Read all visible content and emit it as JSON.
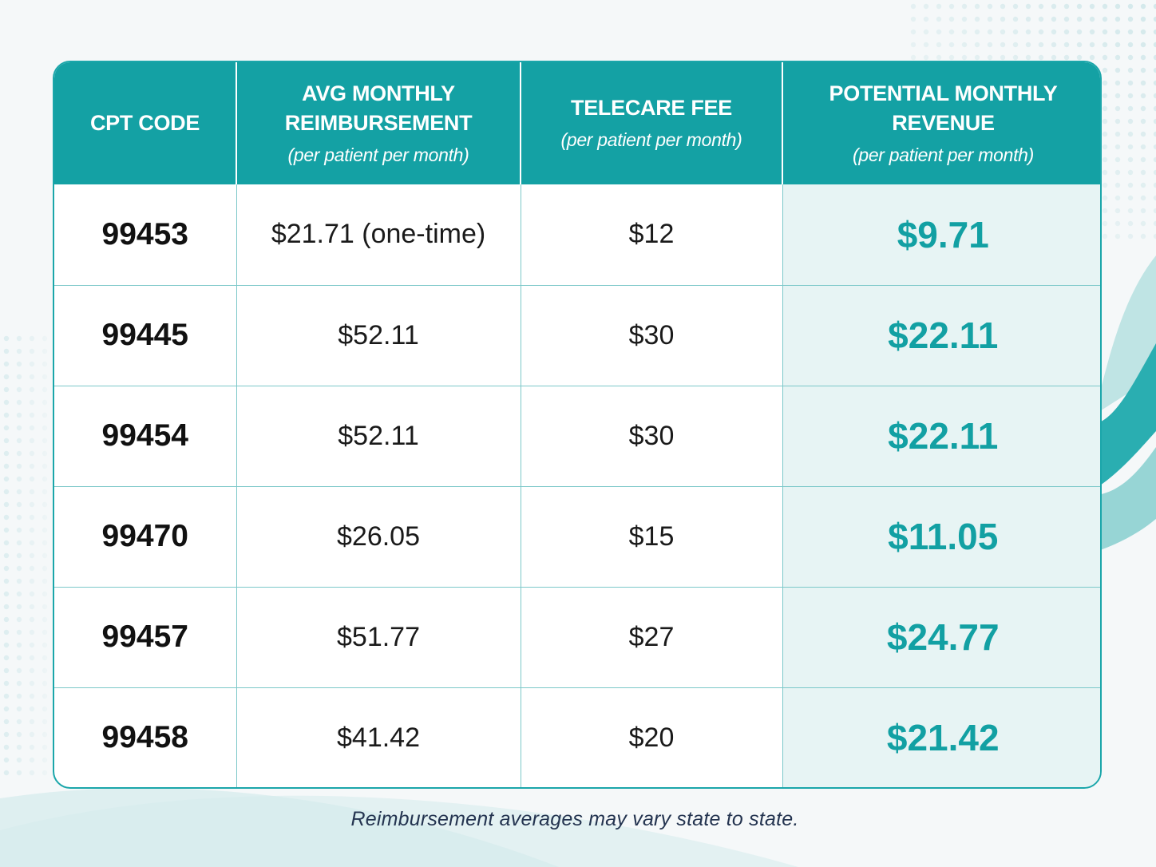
{
  "colors": {
    "header_bg": "#14a1a4",
    "accent_teal": "#12a0a3",
    "revenue_cell_bg": "#e7f4f4",
    "grid_line": "#7cc8c9"
  },
  "chart_data": {
    "type": "table",
    "columns": [
      {
        "title": "CPT CODE",
        "subtitle": ""
      },
      {
        "title": "AVG MONTHLY REIMBURSEMENT",
        "subtitle": "(per patient per month)"
      },
      {
        "title": "TELECARE FEE",
        "subtitle": "(per patient per month)"
      },
      {
        "title": "POTENTIAL MONTHLY REVENUE",
        "subtitle": "(per patient per month)"
      }
    ],
    "rows": [
      {
        "cpt_code": "99453",
        "reimbursement": "$21.71 (one-time)",
        "telecare_fee": "$12",
        "revenue": "$9.71"
      },
      {
        "cpt_code": "99445",
        "reimbursement": "$52.11",
        "telecare_fee": "$30",
        "revenue": "$22.11"
      },
      {
        "cpt_code": "99454",
        "reimbursement": "$52.11",
        "telecare_fee": "$30",
        "revenue": "$22.11"
      },
      {
        "cpt_code": "99470",
        "reimbursement": "$26.05",
        "telecare_fee": "$15",
        "revenue": "$11.05"
      },
      {
        "cpt_code": "99457",
        "reimbursement": "$51.77",
        "telecare_fee": "$27",
        "revenue": "$24.77"
      },
      {
        "cpt_code": "99458",
        "reimbursement": "$41.42",
        "telecare_fee": "$20",
        "revenue": "$21.42"
      }
    ]
  },
  "footnote": "Reimbursement averages may vary state to state."
}
